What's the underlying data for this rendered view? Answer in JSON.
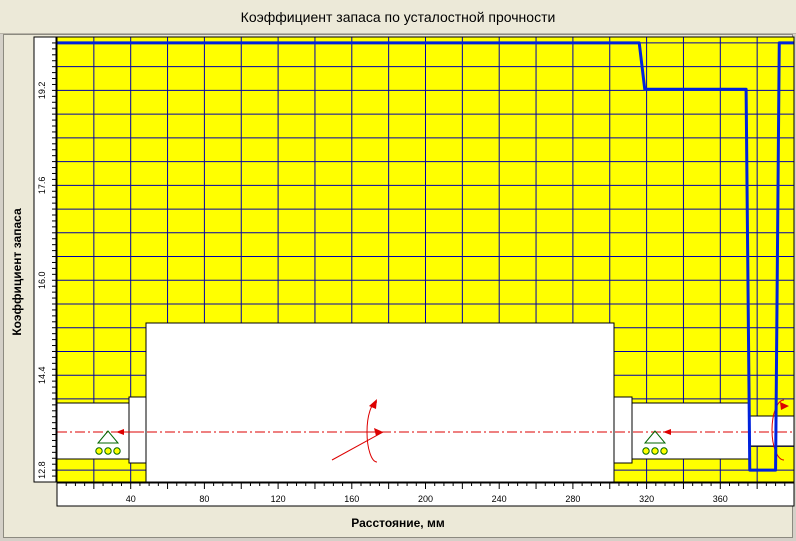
{
  "window": {
    "title": "Коэффициент запаса по усталостной прочности"
  },
  "chart_data": {
    "type": "line",
    "title": "Коэффициент запаса по усталостной прочности",
    "xlabel": "Расстояние, мм",
    "ylabel": "Коэффициент запаса",
    "xlim": [
      0,
      400
    ],
    "ylim": [
      12.6,
      20.1
    ],
    "x_ticks": [
      40,
      80,
      120,
      160,
      200,
      240,
      280,
      320,
      360
    ],
    "y_ticks": [
      12.8,
      14.4,
      16.0,
      17.6,
      19.2
    ],
    "x_tick_labels": [
      "40",
      "80",
      "120",
      "160",
      "200",
      "240",
      "280",
      "320",
      "360"
    ],
    "y_tick_labels": [
      "12.8",
      "14.4",
      "16.0",
      "17.6",
      "19.2"
    ],
    "grid": true,
    "background_color": "#ffff00",
    "series": [
      {
        "color": "#0022dd",
        "x": [
          0,
          316,
          319,
          374,
          376,
          378,
          390,
          392,
          400
        ],
        "y": [
          20.0,
          20.0,
          19.22,
          19.22,
          12.8,
          12.8,
          12.8,
          20.0,
          20.0
        ]
      }
    ]
  }
}
